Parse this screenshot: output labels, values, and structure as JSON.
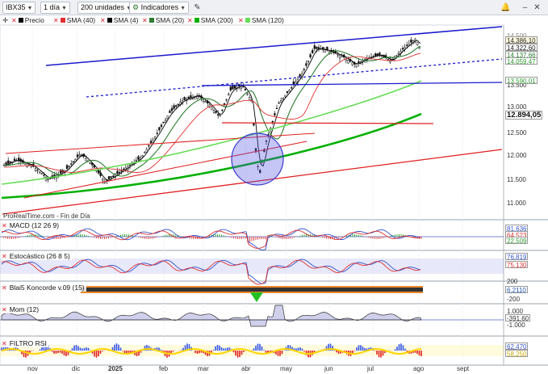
{
  "toolbar": {
    "symbol": "IBX35",
    "period": "1 día",
    "units": "200 unidades",
    "indicators": "Indicadores"
  },
  "legend": {
    "items": [
      {
        "label": "Precio",
        "color": "#000000"
      },
      {
        "label": "SMA (40)",
        "color": "#e03030"
      },
      {
        "label": "SMA (4)",
        "color": "#000000"
      },
      {
        "label": "SMA (20)",
        "color": "#2e7d32"
      },
      {
        "label": "SMA (200)",
        "color": "#00b000"
      },
      {
        "label": "SMA (120)",
        "color": "#66dd55"
      }
    ]
  },
  "price_axis": {
    "tags": [
      {
        "text": "14.386,10",
        "color": "#000000"
      },
      {
        "text": "14.322,60",
        "color": "#e03030"
      },
      {
        "text": "14.137,66",
        "color": "#2e7d32"
      },
      {
        "text": "14.059,47",
        "color": "#66dd55"
      },
      {
        "text": "13.590,01",
        "color": "#66dd55"
      },
      {
        "text": "12.894,05",
        "color": "#00b000"
      }
    ],
    "ticks": [
      "13.500",
      "13.000",
      "12.500",
      "12.000",
      "11.500",
      "11.000"
    ],
    "partial_top": "14.500"
  },
  "footer_note": "ProRealTime.com - Fin de Día",
  "x_axis": [
    "nov",
    "dic",
    "2025",
    "feb",
    "mar",
    "abr",
    "may",
    "jun",
    "jul",
    "ago",
    "sept"
  ],
  "panes": [
    {
      "label": "MACD (12 26 9)",
      "values": [
        "81,636",
        "64,523",
        "22,509"
      ],
      "ticks": []
    },
    {
      "label": "Estocástico (26 8 5)",
      "values": [
        "76,819",
        "75,130"
      ],
      "ticks": []
    },
    {
      "label": "Blai5 Koncorde v.09 (15)",
      "values": [
        "6,2110"
      ],
      "ticks": [
        "200",
        "-200"
      ]
    },
    {
      "label": "Mom (12)",
      "values": [
        "-391,60"
      ],
      "ticks": [
        "1.000",
        "-1.000"
      ]
    },
    {
      "label": "FILTRO RSI",
      "values": [
        "62,470",
        "58,250"
      ],
      "ticks": []
    }
  ],
  "colors": {
    "up_channel": "#1a1acc",
    "support_red": "#e02020",
    "highlight_circle": "#3a3ad0",
    "sma200": "#00b000",
    "sma120": "#66dd55",
    "sma20": "#2e7d32"
  }
}
